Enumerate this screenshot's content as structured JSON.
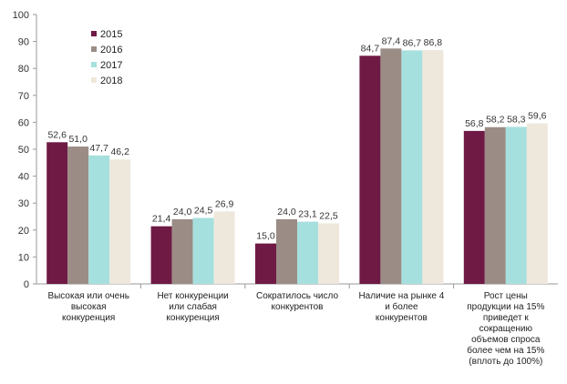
{
  "chart_data": {
    "type": "bar",
    "title": "",
    "xlabel": "",
    "ylabel": "",
    "ylim": [
      0,
      100
    ],
    "yticks": [
      0,
      10,
      20,
      30,
      40,
      50,
      60,
      70,
      80,
      90,
      100
    ],
    "grid": false,
    "legend_position": "top-left",
    "categories": [
      [
        "Высокая или очень",
        "высокая",
        "конкуренция"
      ],
      [
        "Нет конкуренции",
        "или слабая",
        "конкуренция"
      ],
      [
        "Сократилось число",
        "конкурентов"
      ],
      [
        "Наличие на рынке 4",
        "и более",
        "конкурентов"
      ],
      [
        "Рост цены",
        "продукции на 15%",
        "приведет к",
        "сокращению",
        "объемов спроса",
        "более чем на 15%",
        "(вплоть до 100%)"
      ]
    ],
    "series": [
      {
        "name": "2015",
        "color": "#6e1a45",
        "label_color": "#333333",
        "values": [
          52.6,
          21.4,
          15.0,
          84.7,
          56.8
        ],
        "labels": [
          "52,6",
          "21,4",
          "15,0",
          "84,7",
          "56,8"
        ]
      },
      {
        "name": "2016",
        "color": "#9b8c86",
        "label_color": "#333333",
        "values": [
          51.0,
          24.0,
          24.0,
          87.4,
          58.2
        ],
        "labels": [
          "51,0",
          "24,0",
          "24,0",
          "87,4",
          "58,2"
        ]
      },
      {
        "name": "2017",
        "color": "#a6e0de",
        "label_color": "#2a8a8a",
        "values": [
          47.7,
          24.5,
          23.1,
          86.7,
          58.3
        ],
        "labels": [
          "47,7",
          "24,5",
          "23,1",
          "86,7",
          "58,3"
        ]
      },
      {
        "name": "2018",
        "color": "#eee8dc",
        "label_color": "#333333",
        "values": [
          46.2,
          26.9,
          22.5,
          86.8,
          59.6
        ],
        "labels": [
          "46,2",
          "26,9",
          "22,5",
          "86,8",
          "59,6"
        ]
      }
    ]
  }
}
